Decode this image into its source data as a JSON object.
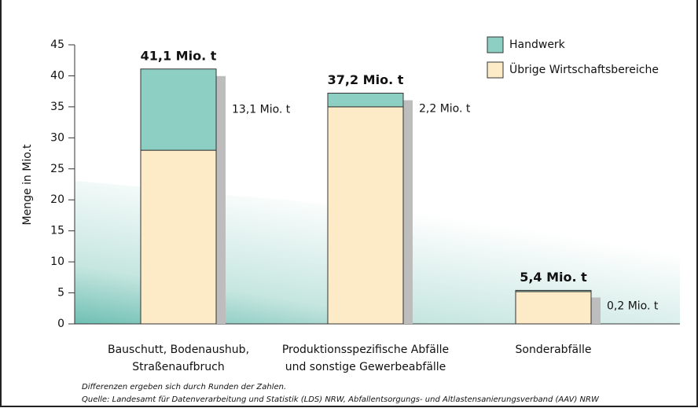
{
  "chart_data": {
    "type": "stacked_bar",
    "y_label": "Menge in Mio.t",
    "categories": [
      [
        "Bauschutt, Bodenaushub,",
        "Straßenaufbruch"
      ],
      [
        "Produktionsspezifische Abfälle",
        "und sonstige Gewerbeabfälle"
      ],
      [
        "Sonderabfälle"
      ]
    ],
    "series": [
      {
        "name": "Übrige Wirtschaftsbereiche",
        "color": "#fdebc8",
        "values": [
          28.0,
          35.0,
          5.2
        ]
      },
      {
        "name": "Handwerk",
        "color": "#8ecfc4",
        "values": [
          13.1,
          2.2,
          0.2
        ],
        "value_labels": [
          "13,1 Mio. t",
          "2,2 Mio. t",
          "0,2 Mio. t"
        ]
      }
    ],
    "totals": [
      41.1,
      37.2,
      5.4
    ],
    "total_labels": [
      "41,1 Mio. t",
      "37,2 Mio. t",
      "5,4 Mio. t"
    ],
    "ylim": [
      0,
      45
    ],
    "yticks": [
      0,
      5,
      10,
      15,
      20,
      25,
      30,
      35,
      40,
      45
    ],
    "notes": [
      "Differenzen ergeben sich durch Runden der Zahlen.",
      "Quelle: Landesamt für Datenverarbeitung und Statistik (LDS) NRW, Abfallentsorgungs- und Altlastensanierungsverband (AAV) NRW"
    ]
  }
}
